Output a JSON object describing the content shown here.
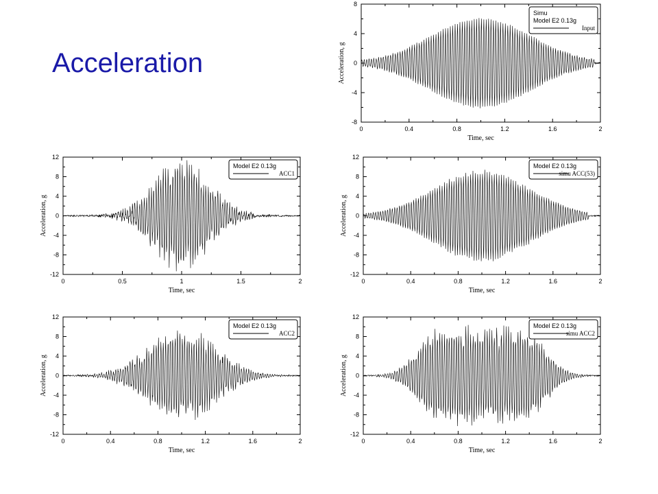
{
  "slide": {
    "title": "Acceleration"
  },
  "chart_data": [
    {
      "id": "simu-input",
      "type": "line",
      "xlabel": "Time, sec",
      "ylabel": "Acceleration, g",
      "xlim": [
        0,
        2
      ],
      "ylim": [
        -8,
        8
      ],
      "xticks": [
        0,
        0.4,
        0.8,
        1.2,
        1.6,
        2
      ],
      "xtick_labels": [
        "0",
        "0.4",
        "0.8",
        "1.2",
        "1.6",
        "2"
      ],
      "yticks": [
        -8,
        -4,
        0,
        4,
        8
      ],
      "ytick_labels": [
        "-8",
        "-4",
        "0",
        "4",
        "8"
      ],
      "grid": false,
      "legend_position": "top-right",
      "legend_lines": [
        "Simu",
        "Model E2 0.13g"
      ],
      "series": [
        {
          "name": "Input",
          "envelope": "gaussian",
          "peak": 6.0,
          "center": 1.0,
          "sigma": 0.42,
          "frequency_hz": 50,
          "end_time": 1.95
        }
      ]
    },
    {
      "id": "acc1",
      "type": "line",
      "xlabel": "Time, sec",
      "ylabel": "Acceleration, g",
      "xlim": [
        0,
        2
      ],
      "ylim": [
        -12,
        12
      ],
      "xticks": [
        0,
        0.5,
        1,
        1.5,
        2
      ],
      "xtick_labels": [
        "0",
        "0.5",
        "1",
        "1.5",
        "2"
      ],
      "yticks": [
        -12,
        -8,
        -4,
        0,
        4,
        8,
        12
      ],
      "ytick_labels": [
        "-12",
        "-8",
        "-4",
        "0",
        "4",
        "8",
        "12"
      ],
      "grid": false,
      "legend_position": "top-right",
      "legend_lines": [
        "Model E2 0.13g"
      ],
      "series": [
        {
          "name": "ACC1",
          "envelope": "gaussian",
          "peak": 9.5,
          "center": 1.0,
          "sigma": 0.22,
          "frequency_hz": 50,
          "noise": 2.5,
          "end_time": 2.0
        }
      ]
    },
    {
      "id": "simu-acc53",
      "type": "line",
      "xlabel": "Time, sec",
      "ylabel": "Acceleration, g",
      "xlim": [
        0,
        2
      ],
      "ylim": [
        -12,
        12
      ],
      "xticks": [
        0,
        0.4,
        0.8,
        1.2,
        1.6,
        2
      ],
      "xtick_labels": [
        "0",
        "0.4",
        "0.8",
        "1.2",
        "1.6",
        "2"
      ],
      "yticks": [
        -12,
        -8,
        -4,
        0,
        4,
        8,
        12
      ],
      "ytick_labels": [
        "-12",
        "-8",
        "-4",
        "0",
        "4",
        "8",
        "12"
      ],
      "grid": false,
      "legend_position": "top-right",
      "legend_lines": [
        "Model E2 0.13g"
      ],
      "series": [
        {
          "name": "simu ACC(53)",
          "envelope": "gaussian",
          "peak": 9.0,
          "center": 1.0,
          "sigma": 0.4,
          "frequency_hz": 50,
          "noise": 0.6,
          "end_time": 1.9
        }
      ]
    },
    {
      "id": "acc2",
      "type": "line",
      "xlabel": "Time, sec",
      "ylabel": "Acceleration, g",
      "xlim": [
        0,
        2
      ],
      "ylim": [
        -12,
        12
      ],
      "xticks": [
        0,
        0.4,
        0.8,
        1.2,
        1.6,
        2
      ],
      "xtick_labels": [
        "0",
        "0.4",
        "0.8",
        "1.2",
        "1.6",
        "2"
      ],
      "yticks": [
        -12,
        -8,
        -4,
        0,
        4,
        8,
        12
      ],
      "ytick_labels": [
        "-12",
        "-8",
        "-4",
        "0",
        "4",
        "8",
        "12"
      ],
      "grid": false,
      "legend_position": "top-right",
      "legend_lines": [
        "Model E2 0.13g"
      ],
      "series": [
        {
          "name": "ACC2",
          "envelope": "gaussian",
          "peak": 8.0,
          "center": 1.0,
          "sigma": 0.28,
          "frequency_hz": 50,
          "noise": 2.2,
          "end_time": 2.0
        }
      ]
    },
    {
      "id": "simu-acc2",
      "type": "line",
      "xlabel": "Time, sec",
      "ylabel": "Acceleration, g",
      "xlim": [
        0,
        2
      ],
      "ylim": [
        -12,
        12
      ],
      "xticks": [
        0,
        0.4,
        0.8,
        1.2,
        1.6,
        2
      ],
      "xtick_labels": [
        "0",
        "0.4",
        "0.8",
        "1.2",
        "1.6",
        "2"
      ],
      "yticks": [
        -12,
        -8,
        -4,
        0,
        4,
        8,
        12
      ],
      "ytick_labels": [
        "-12",
        "-8",
        "-4",
        "0",
        "4",
        "8",
        "12"
      ],
      "grid": false,
      "legend_position": "top-right",
      "legend_lines": [
        "Model E2 0.13g"
      ],
      "series": [
        {
          "name": "simu ACC2",
          "envelope": "plateau",
          "peak": 9.5,
          "center": 1.0,
          "sigma": 0.4,
          "frequency_hz": 50,
          "noise": 2.0,
          "end_time": 1.9
        }
      ]
    }
  ]
}
